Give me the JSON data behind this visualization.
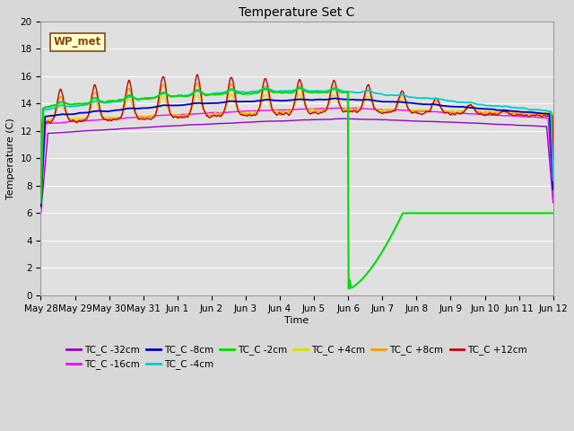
{
  "title": "Temperature Set C",
  "xlabel": "Time",
  "ylabel": "Temperature (C)",
  "ylim": [
    0,
    20
  ],
  "annotation_label": "WP_met",
  "series_colors": {
    "TC_C -32cm": "#9900cc",
    "TC_C -16cm": "#ff00ff",
    "TC_C -8cm": "#0000bb",
    "TC_C -4cm": "#00cccc",
    "TC_C -2cm": "#00dd00",
    "TC_C +4cm": "#dddd00",
    "TC_C +8cm": "#ff9900",
    "TC_C +12cm": "#cc0000"
  },
  "bg_color": "#e0e0e0",
  "grid_color": "#f8f8f8",
  "tick_labels": [
    "May 28",
    "May 29",
    "May 30",
    "May 31",
    "Jun 1",
    "Jun 2",
    "Jun 3",
    "Jun 4",
    "Jun 5",
    "Jun 6",
    "Jun 7",
    "Jun 8",
    "Jun 9",
    "Jun 10",
    "Jun 11",
    "Jun 12"
  ],
  "num_points": 720
}
